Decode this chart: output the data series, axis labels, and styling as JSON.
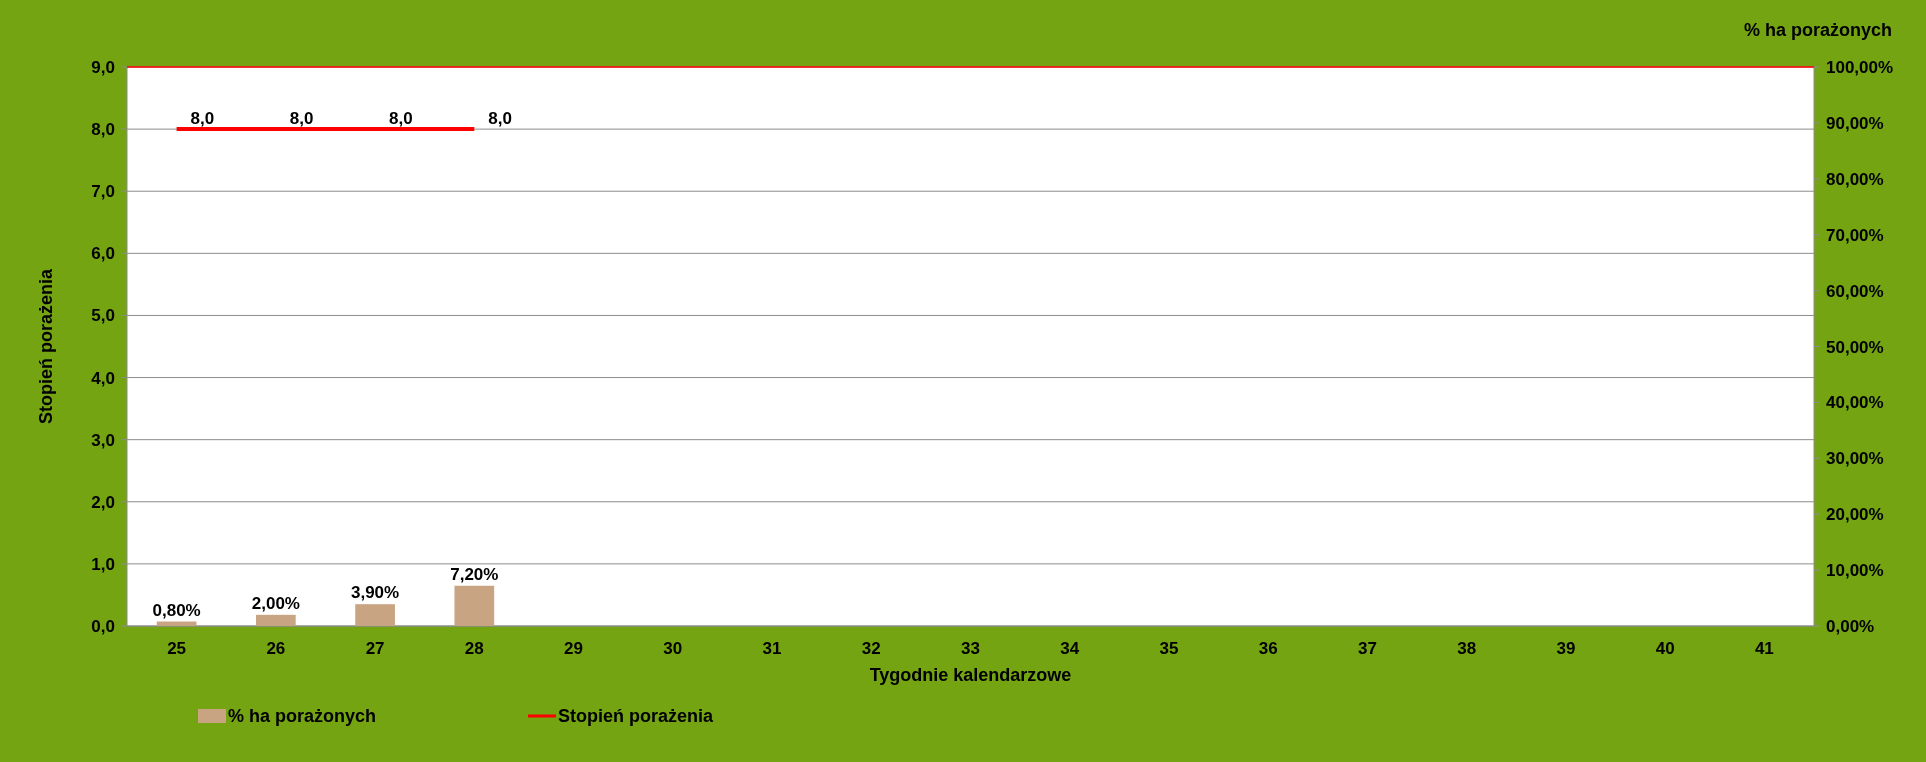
{
  "chart_data": {
    "type": "bar",
    "ylabel": "Stopień porażenia",
    "y2label": "% ha porażonych",
    "xlabel": "Tygodnie kalendarzowe",
    "categories": [
      "25",
      "26",
      "27",
      "28",
      "29",
      "30",
      "31",
      "32",
      "33",
      "34",
      "35",
      "36",
      "37",
      "38",
      "39",
      "40",
      "41"
    ],
    "series": [
      {
        "name": "% ha porażonych",
        "axis": "y2",
        "color": "#c8a482",
        "values": [
          0.8,
          2.0,
          3.9,
          7.2,
          null,
          null,
          null,
          null,
          null,
          null,
          null,
          null,
          null,
          null,
          null,
          null,
          null
        ],
        "value_labels": [
          "0,80%",
          "2,00%",
          "3,90%",
          "7,20%",
          null,
          null,
          null,
          null,
          null,
          null,
          null,
          null,
          null,
          null,
          null,
          null,
          null
        ]
      },
      {
        "name": "Stopień porażenia",
        "type": "line",
        "axis": "y",
        "color": "#ff0000",
        "marker": "none",
        "values": [
          8.0,
          8.0,
          8.0,
          8.0,
          null,
          null,
          null,
          null,
          null,
          null,
          null,
          null,
          null,
          null,
          null,
          null,
          null
        ],
        "value_labels": [
          "8,0",
          "8,0",
          "8,0",
          "8,0",
          null,
          null,
          null,
          null,
          null,
          null,
          null,
          null,
          null,
          null,
          null,
          null,
          null
        ]
      }
    ],
    "ylim": [
      0,
      9
    ],
    "yticks": [
      {
        "value": 0,
        "label": "0,0"
      },
      {
        "value": 1,
        "label": "1,0"
      },
      {
        "value": 2,
        "label": "2,0"
      },
      {
        "value": 3,
        "label": "3,0"
      },
      {
        "value": 4,
        "label": "4,0"
      },
      {
        "value": 5,
        "label": "5,0"
      },
      {
        "value": 6,
        "label": "6,0"
      },
      {
        "value": 7,
        "label": "7,0"
      },
      {
        "value": 8,
        "label": "8,0"
      },
      {
        "value": 9,
        "label": "9,0"
      }
    ],
    "y2lim": [
      0,
      100
    ],
    "y2ticks": [
      {
        "value": 0,
        "label": "0,00%"
      },
      {
        "value": 10,
        "label": "10,00%"
      },
      {
        "value": 20,
        "label": "20,00%"
      },
      {
        "value": 30,
        "label": "30,00%"
      },
      {
        "value": 40,
        "label": "40,00%"
      },
      {
        "value": 50,
        "label": "50,00%"
      },
      {
        "value": 60,
        "label": "60,00%"
      },
      {
        "value": 70,
        "label": "70,00%"
      },
      {
        "value": 80,
        "label": "80,00%"
      },
      {
        "value": 90,
        "label": "90,00%"
      },
      {
        "value": 100,
        "label": "100,00%"
      }
    ],
    "ref_lines": [
      {
        "axis": "y",
        "value": 9,
        "color": "#ff0000"
      }
    ],
    "grid": "y",
    "legend": "bottom"
  }
}
